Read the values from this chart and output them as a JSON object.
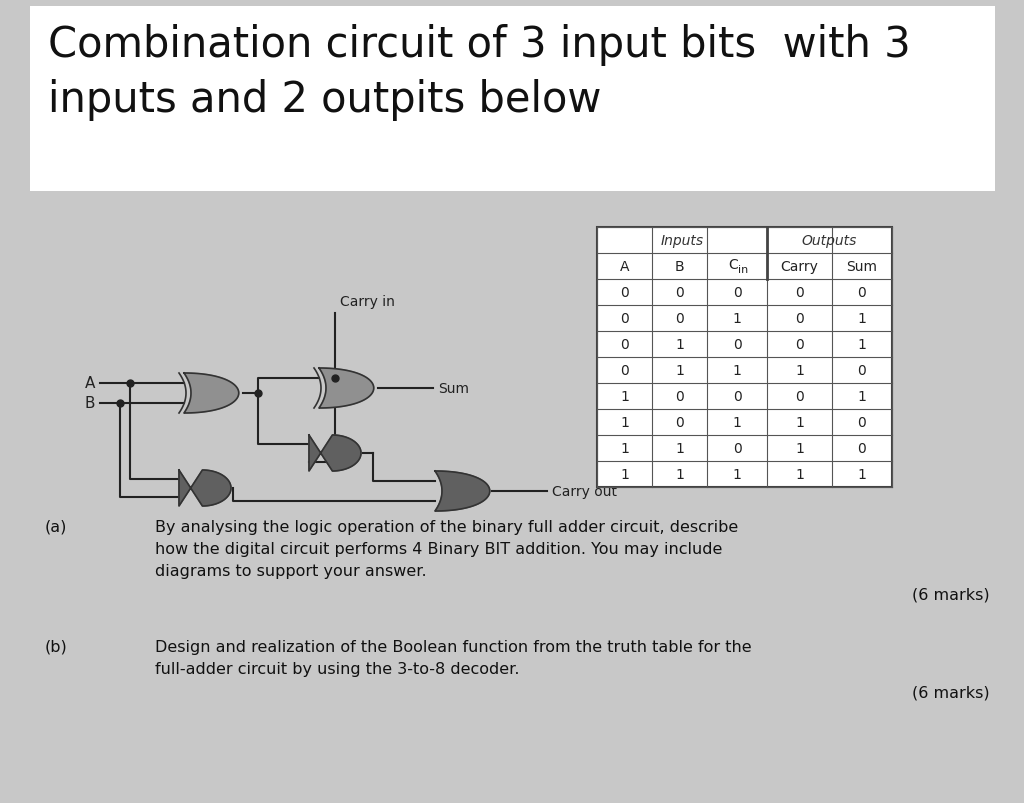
{
  "bg_color": "#c8c8c8",
  "title_box_color": "#ffffff",
  "title_line1": "Combination circuit of 3 input bits  with 3",
  "title_line2": "inputs and 2 outpits below",
  "title_fontsize": 30,
  "gate_color": "#909090",
  "gate_dark_color": "#606060",
  "line_color": "#222222",
  "text_color": "#111111",
  "table_data": [
    [
      0,
      0,
      0,
      0,
      0
    ],
    [
      0,
      0,
      1,
      0,
      1
    ],
    [
      0,
      1,
      0,
      0,
      1
    ],
    [
      0,
      1,
      1,
      1,
      0
    ],
    [
      1,
      0,
      0,
      0,
      1
    ],
    [
      1,
      0,
      1,
      1,
      0
    ],
    [
      1,
      1,
      0,
      1,
      0
    ],
    [
      1,
      1,
      1,
      1,
      1
    ]
  ],
  "qa_label": "(a)",
  "qa_text1": "By analysing the logic operation of the binary full adder circuit, describe",
  "qa_text2": "how the digital circuit performs 4 Binary BIT addition. You may include",
  "qa_text3": "diagrams to support your answer.",
  "qa_marks": "(6 marks)",
  "qb_label": "(b)",
  "qb_text1": "Design and realization of the Boolean function from the truth table for the",
  "qb_text2": "full-adder circuit by using the 3-to-8 decoder.",
  "qb_marks": "(6 marks)"
}
